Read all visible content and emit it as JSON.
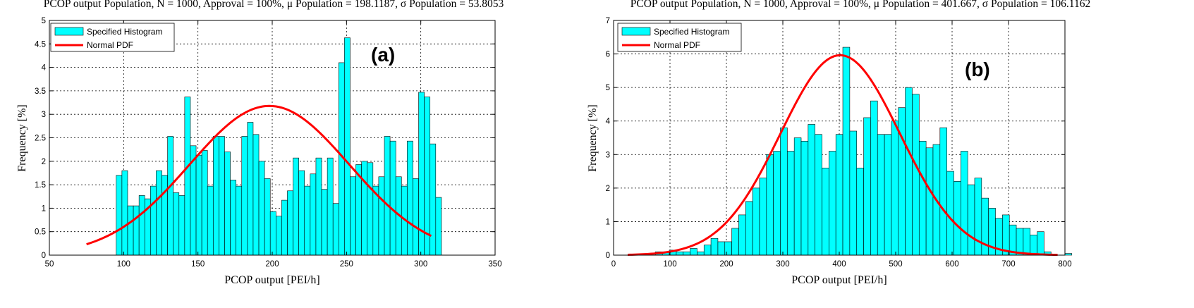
{
  "colors": {
    "histogram": "#00ffff",
    "pdf": "#ff0000",
    "edge": "#000000"
  },
  "chart_data": [
    {
      "type": "bar",
      "title": "PCOP output Population, N = 1000, Approval = 100%, μ Population = 198.1187, σ Population = 53.8053",
      "panel_label": "(a)",
      "xlabel": "PCOP output [PEI/h]",
      "ylabel": "Frequency [%]",
      "xlim": [
        50,
        350
      ],
      "ylim": [
        0,
        5
      ],
      "xticks": [
        "50",
        "100",
        "150",
        "200",
        "250",
        "300",
        "350"
      ],
      "yticks": [
        "0",
        "0.5",
        "1",
        "1.5",
        "2",
        "2.5",
        "3",
        "3.5",
        "4",
        "4.5",
        "5"
      ],
      "grid": true,
      "legend": {
        "position": "top-left",
        "entries": [
          "Specified Histogram",
          "Normal PDF"
        ]
      },
      "pdf": {
        "mean": 198.1187,
        "std": 53.8053,
        "xrange": [
          75,
          307
        ]
      },
      "bin_start": 95,
      "bin_width": 3.84,
      "values": [
        1.7,
        1.8,
        1.05,
        1.05,
        1.27,
        1.2,
        1.47,
        1.8,
        1.7,
        2.53,
        1.33,
        1.27,
        3.37,
        2.33,
        2.13,
        2.23,
        1.47,
        2.53,
        2.53,
        2.2,
        1.6,
        1.47,
        2.53,
        2.83,
        2.57,
        2.0,
        1.63,
        0.93,
        0.83,
        1.17,
        1.37,
        2.07,
        1.8,
        1.47,
        1.73,
        2.07,
        1.4,
        2.07,
        1.1,
        4.1,
        4.63,
        1.67,
        1.93,
        2.0,
        1.97,
        1.47,
        1.67,
        2.53,
        2.43,
        1.67,
        1.47,
        2.43,
        1.63,
        3.47,
        3.37,
        2.37,
        1.23
      ]
    },
    {
      "type": "bar",
      "title": "PCOP output Population, N = 1000, Approval = 100%, μ Population = 401.667, σ Population = 106.1162",
      "panel_label": "(b)",
      "xlabel": "PCOP output [PEI/h]",
      "ylabel": "Frequency [%]",
      "xlim": [
        0,
        800
      ],
      "ylim": [
        0,
        7
      ],
      "xticks": [
        "0",
        "100",
        "200",
        "300",
        "400",
        "500",
        "600",
        "700",
        "800"
      ],
      "yticks": [
        "0",
        "1",
        "2",
        "3",
        "4",
        "5",
        "6",
        "7"
      ],
      "grid": true,
      "legend": {
        "position": "top-left",
        "entries": [
          "Specified Histogram",
          "Normal PDF"
        ]
      },
      "pdf": {
        "mean": 401.667,
        "std": 106.1162,
        "xrange": [
          25,
          787
        ]
      },
      "bin_start": 25,
      "bin_width": 12.3,
      "values": [
        0.0,
        0.0,
        0.0,
        0.05,
        0.1,
        0.1,
        0.15,
        0.1,
        0.1,
        0.2,
        0.1,
        0.3,
        0.5,
        0.4,
        0.4,
        0.8,
        1.2,
        1.6,
        2.0,
        2.3,
        3.0,
        3.1,
        3.8,
        3.1,
        3.5,
        3.4,
        3.9,
        3.6,
        2.6,
        3.1,
        3.6,
        6.2,
        3.7,
        2.6,
        4.1,
        4.6,
        3.6,
        3.6,
        4.0,
        4.4,
        5.0,
        4.8,
        3.4,
        3.2,
        3.3,
        3.8,
        2.5,
        2.2,
        3.1,
        2.1,
        2.3,
        1.7,
        1.4,
        1.1,
        1.2,
        0.9,
        0.8,
        0.8,
        0.6,
        0.7,
        0.1,
        0.0,
        0.0,
        0.05
      ]
    }
  ]
}
